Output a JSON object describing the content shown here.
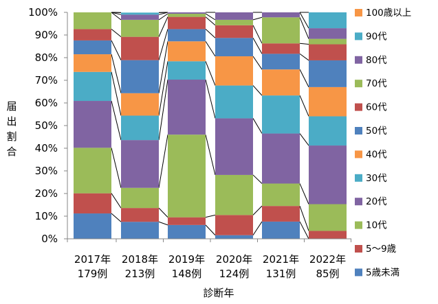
{
  "chart_data": {
    "type": "bar",
    "stacked": true,
    "percent_stacked": true,
    "xlabel": "診断年",
    "ylabel": "届出割合",
    "ylim": [
      0,
      100
    ],
    "yticks": [
      "0%",
      "10%",
      "20%",
      "30%",
      "40%",
      "50%",
      "60%",
      "70%",
      "80%",
      "90%",
      "100%"
    ],
    "legend_position": "right",
    "grid": false,
    "categories": [
      {
        "year": "2017年",
        "count": "179例"
      },
      {
        "year": "2018年",
        "count": "213例"
      },
      {
        "year": "2019年",
        "count": "148例"
      },
      {
        "year": "2020年",
        "count": "124例"
      },
      {
        "year": "2021年",
        "count": "131例"
      },
      {
        "year": "2022年",
        "count": "85例"
      }
    ],
    "series": [
      {
        "name": "5歳未満",
        "color": "#4F81BD",
        "values": [
          11.2,
          7.5,
          6.1,
          1.6,
          7.6,
          0.0
        ]
      },
      {
        "name": "5～9歳",
        "color": "#C0504D",
        "values": [
          8.9,
          6.1,
          3.4,
          8.9,
          6.9,
          3.5
        ]
      },
      {
        "name": "10代",
        "color": "#9BBB59",
        "values": [
          20.1,
          8.9,
          36.5,
          17.7,
          9.9,
          11.8
        ]
      },
      {
        "name": "20代",
        "color": "#8064A2",
        "values": [
          20.7,
          21.1,
          24.3,
          25.0,
          22.1,
          25.9
        ]
      },
      {
        "name": "30代",
        "color": "#4BACC6",
        "values": [
          12.8,
          10.8,
          8.1,
          14.5,
          16.8,
          12.9
        ]
      },
      {
        "name": "40代",
        "color": "#F79646",
        "values": [
          7.8,
          9.9,
          8.8,
          12.9,
          11.5,
          12.9
        ]
      },
      {
        "name": "50代",
        "color": "#4F81BD",
        "values": [
          6.1,
          14.6,
          5.4,
          8.1,
          6.9,
          11.8
        ]
      },
      {
        "name": "60代",
        "color": "#C0504D",
        "values": [
          5.0,
          10.3,
          5.4,
          5.6,
          4.6,
          7.1
        ]
      },
      {
        "name": "70代",
        "color": "#9BBB59",
        "values": [
          7.4,
          7.5,
          1.4,
          2.4,
          11.5,
          2.4
        ]
      },
      {
        "name": "80代",
        "color": "#8064A2",
        "values": [
          0.0,
          2.3,
          0.6,
          3.3,
          2.2,
          4.7
        ]
      },
      {
        "name": "90代",
        "color": "#4BACC6",
        "values": [
          0.0,
          0.9,
          0.0,
          0.0,
          0.0,
          7.0
        ]
      },
      {
        "name": "100歳以上",
        "color": "#F79646",
        "values": [
          0.0,
          0.0,
          0.0,
          0.0,
          0.0,
          0.0
        ]
      }
    ]
  }
}
